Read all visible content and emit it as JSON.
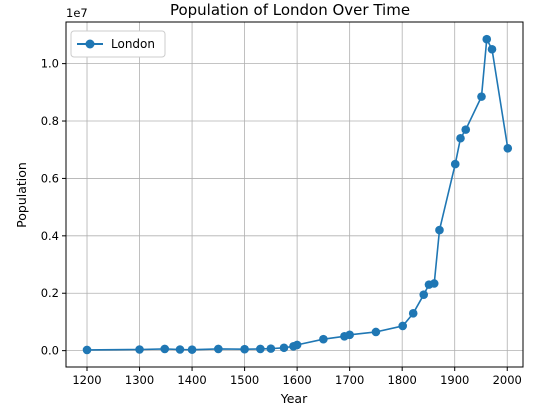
{
  "chart_data": {
    "type": "line",
    "title": "Population of London Over Time",
    "xlabel": "Year",
    "ylabel": "Population",
    "y_offset_label": "1e7",
    "xlim": [
      1160,
      2030
    ],
    "ylim": [
      -570000,
      11450000
    ],
    "xticks": [
      1200,
      1300,
      1400,
      1500,
      1600,
      1700,
      1800,
      1900,
      2000
    ],
    "xtick_labels": [
      "1200",
      "1300",
      "1400",
      "1500",
      "1600",
      "1700",
      "1800",
      "1900",
      "2000"
    ],
    "yticks": [
      0,
      2000000,
      4000000,
      6000000,
      8000000,
      10000000
    ],
    "ytick_labels": [
      "0.0",
      "0.2",
      "0.4",
      "0.6",
      "0.8",
      "1.0"
    ],
    "grid": true,
    "legend_position": "top-left",
    "series": [
      {
        "name": "London",
        "color": "#1f77b4",
        "marker": "circle",
        "x": [
          1200,
          1300,
          1348,
          1377,
          1400,
          1450,
          1500,
          1530,
          1550,
          1575,
          1593,
          1600,
          1650,
          1690,
          1700,
          1750,
          1801,
          1821,
          1841,
          1851,
          1861,
          1871,
          1901,
          1911,
          1921,
          1951,
          1961,
          1971,
          2001
        ],
        "values": [
          25000,
          40000,
          60000,
          40000,
          35000,
          60000,
          50000,
          60000,
          70000,
          100000,
          150000,
          200000,
          400000,
          500000,
          550000,
          650000,
          860000,
          1300000,
          1950000,
          2300000,
          2340000,
          4200000,
          6500000,
          7400000,
          7700000,
          8850000,
          10850000,
          10500000,
          7050000
        ]
      }
    ]
  }
}
